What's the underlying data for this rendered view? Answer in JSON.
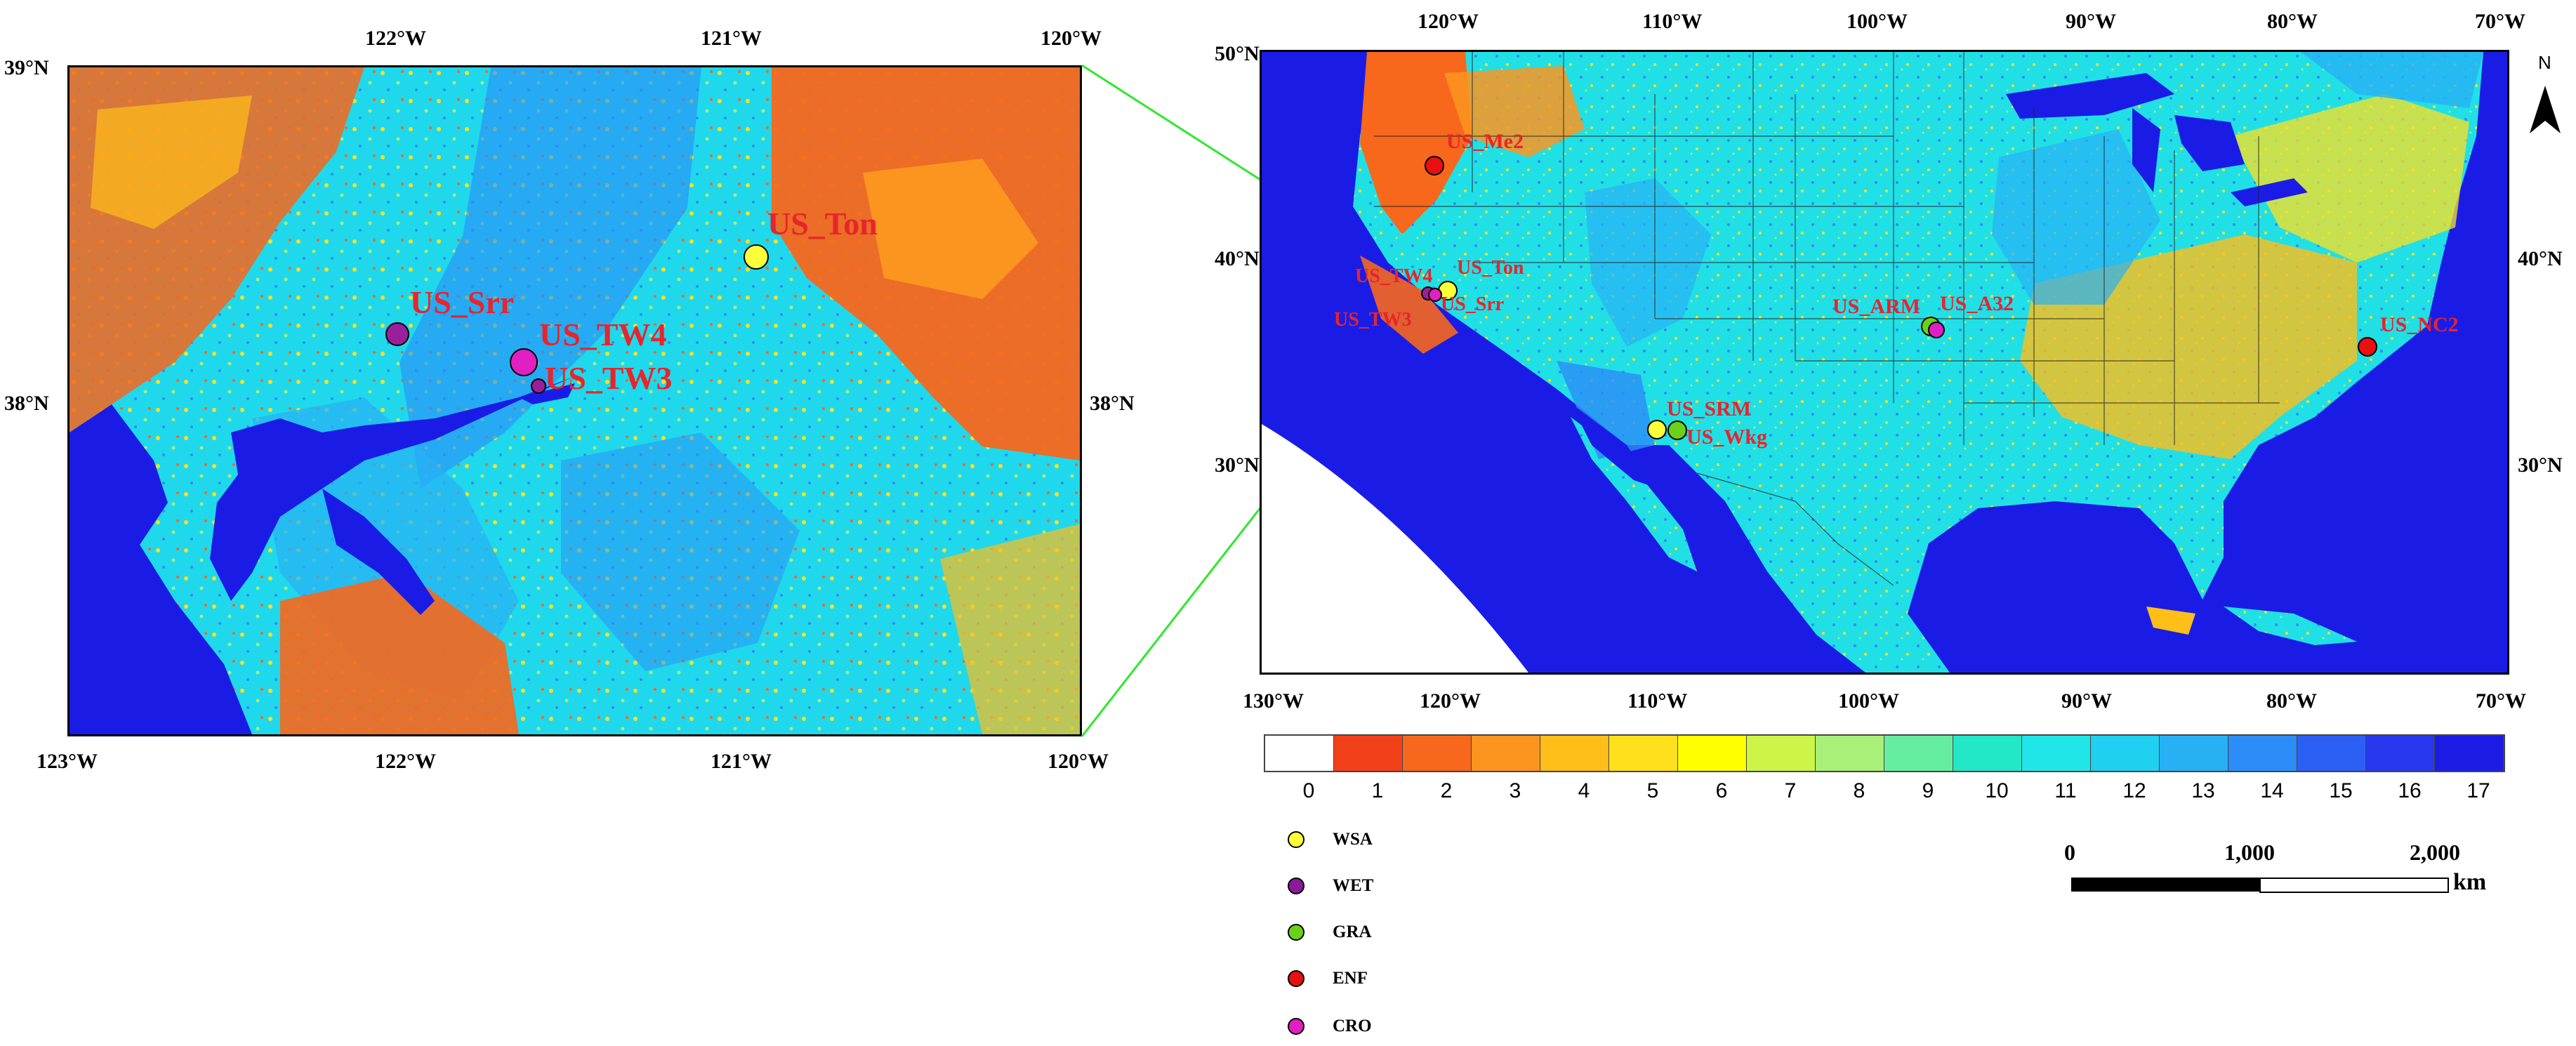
{
  "left_map": {
    "top_ticks": [
      "122°W",
      "121°W",
      "120°W"
    ],
    "bottom_ticks": [
      "123°W",
      "122°W",
      "121°W",
      "120°W"
    ],
    "left_ticks": [
      "39°N",
      "38°N"
    ],
    "right_ticks": [
      "38°N"
    ],
    "sites": [
      {
        "label": "US_Ton",
        "color": "#ffff3a",
        "type": "WSA"
      },
      {
        "label": "US_Srr",
        "color": "#9a1f9a",
        "type": "WET"
      },
      {
        "label": "US_TW4",
        "color": "#e020c0",
        "type": "CRO"
      },
      {
        "label": "US_TW3",
        "color": "#9a1f9a",
        "type": "WET"
      }
    ]
  },
  "right_map": {
    "top_ticks": [
      "120°W",
      "110°W",
      "100°W",
      "90°W",
      "80°W",
      "70°W"
    ],
    "bottom_ticks": [
      "130°W",
      "120°W",
      "110°W",
      "100°W",
      "90°W",
      "80°W",
      "70°W"
    ],
    "left_ticks": [
      "50°N",
      "40°N",
      "30°N"
    ],
    "right_ticks": [
      "40°N",
      "30°N"
    ],
    "north_label": "N",
    "sites": [
      {
        "label": "US_Me2",
        "color": "#e81010",
        "type": "ENF"
      },
      {
        "label": "US_Ton",
        "color": "#ffff3a",
        "type": "WSA"
      },
      {
        "label": "US_Srr",
        "color": "#9a1f9a",
        "type": "WET"
      },
      {
        "label": "US_TW4",
        "color": "#e020c0",
        "type": "CRO"
      },
      {
        "label": "US_TW3",
        "color": "#9a1f9a",
        "type": "WET"
      },
      {
        "label": "US_ARM",
        "color": "#6ad11a",
        "type": "GRA"
      },
      {
        "label": "US_A32",
        "color": "#e020c0",
        "type": "CRO"
      },
      {
        "label": "US_SRM",
        "color": "#ffff3a",
        "type": "WSA"
      },
      {
        "label": "US_Wkg",
        "color": "#6ad11a",
        "type": "GRA"
      },
      {
        "label": "US_NC2",
        "color": "#e81010",
        "type": "ENF"
      }
    ]
  },
  "colorbar": {
    "labels": [
      "0",
      "1",
      "2",
      "3",
      "4",
      "5",
      "6",
      "7",
      "8",
      "9",
      "10",
      "11",
      "12",
      "13",
      "14",
      "15",
      "16",
      "17"
    ],
    "colors": [
      "#ffffff",
      "#f2401a",
      "#f7671c",
      "#fb9520",
      "#ffbe18",
      "#ffe01c",
      "#ffff00",
      "#ccf547",
      "#a8f078",
      "#66eea0",
      "#22e8c8",
      "#20e6e8",
      "#20d0f0",
      "#28b0f5",
      "#2c8cf8",
      "#2c60f5",
      "#2838ee",
      "#1a1ce6"
    ]
  },
  "legend": [
    {
      "label": "WSA",
      "color": "#ffff3a"
    },
    {
      "label": "WET",
      "color": "#8a1a9a"
    },
    {
      "label": "GRA",
      "color": "#6ad11a"
    },
    {
      "label": "ENF",
      "color": "#e81010"
    },
    {
      "label": "CRO",
      "color": "#e020c0"
    }
  ],
  "scale_bar": {
    "ticks": [
      "0",
      "1,000",
      "2,000"
    ],
    "unit": "km"
  }
}
